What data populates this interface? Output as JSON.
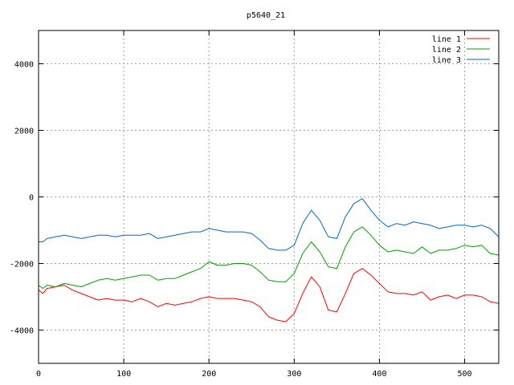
{
  "chart_data": {
    "type": "line",
    "title": "p5640_21",
    "xlabel": "",
    "ylabel": "",
    "xlim": [
      0,
      540
    ],
    "ylim": [
      -5000,
      5000
    ],
    "x_ticks": [
      0,
      100,
      200,
      300,
      400,
      500
    ],
    "y_ticks": [
      -4000,
      -2000,
      0,
      2000,
      4000
    ],
    "grid": true,
    "legend_position": "top-right",
    "series": [
      {
        "name": "line 1",
        "color": "#ff0000",
        "points": [
          [
            0,
            -2800
          ],
          [
            5,
            -2900
          ],
          [
            10,
            -2750
          ],
          [
            20,
            -2700
          ],
          [
            30,
            -2650
          ],
          [
            40,
            -2800
          ],
          [
            50,
            -2900
          ],
          [
            60,
            -3000
          ],
          [
            70,
            -3100
          ],
          [
            80,
            -3050
          ],
          [
            90,
            -3100
          ],
          [
            100,
            -3100
          ],
          [
            110,
            -3150
          ],
          [
            120,
            -3050
          ],
          [
            130,
            -3150
          ],
          [
            140,
            -3300
          ],
          [
            150,
            -3200
          ],
          [
            160,
            -3250
          ],
          [
            170,
            -3200
          ],
          [
            180,
            -3150
          ],
          [
            190,
            -3050
          ],
          [
            200,
            -3000
          ],
          [
            210,
            -3050
          ],
          [
            220,
            -3050
          ],
          [
            230,
            -3050
          ],
          [
            240,
            -3100
          ],
          [
            250,
            -3150
          ],
          [
            260,
            -3300
          ],
          [
            270,
            -3600
          ],
          [
            280,
            -3700
          ],
          [
            290,
            -3750
          ],
          [
            300,
            -3500
          ],
          [
            310,
            -2900
          ],
          [
            320,
            -2400
          ],
          [
            330,
            -2700
          ],
          [
            340,
            -3400
          ],
          [
            350,
            -3450
          ],
          [
            360,
            -2900
          ],
          [
            370,
            -2300
          ],
          [
            380,
            -2150
          ],
          [
            390,
            -2350
          ],
          [
            400,
            -2600
          ],
          [
            410,
            -2850
          ],
          [
            420,
            -2900
          ],
          [
            430,
            -2900
          ],
          [
            440,
            -2950
          ],
          [
            450,
            -2850
          ],
          [
            460,
            -3100
          ],
          [
            470,
            -3000
          ],
          [
            480,
            -2950
          ],
          [
            490,
            -3050
          ],
          [
            500,
            -2950
          ],
          [
            510,
            -2950
          ],
          [
            520,
            -3000
          ],
          [
            530,
            -3150
          ],
          [
            540,
            -3200
          ]
        ]
      },
      {
        "name": "line 2",
        "color": "#00a000",
        "points": [
          [
            0,
            -2650
          ],
          [
            5,
            -2750
          ],
          [
            10,
            -2650
          ],
          [
            20,
            -2700
          ],
          [
            30,
            -2600
          ],
          [
            40,
            -2650
          ],
          [
            50,
            -2700
          ],
          [
            60,
            -2600
          ],
          [
            70,
            -2500
          ],
          [
            80,
            -2450
          ],
          [
            90,
            -2500
          ],
          [
            100,
            -2450
          ],
          [
            110,
            -2400
          ],
          [
            120,
            -2350
          ],
          [
            130,
            -2350
          ],
          [
            140,
            -2500
          ],
          [
            150,
            -2450
          ],
          [
            160,
            -2450
          ],
          [
            170,
            -2350
          ],
          [
            180,
            -2250
          ],
          [
            190,
            -2150
          ],
          [
            200,
            -1950
          ],
          [
            210,
            -2050
          ],
          [
            220,
            -2050
          ],
          [
            230,
            -2000
          ],
          [
            240,
            -2000
          ],
          [
            250,
            -2050
          ],
          [
            260,
            -2250
          ],
          [
            270,
            -2500
          ],
          [
            280,
            -2550
          ],
          [
            290,
            -2550
          ],
          [
            300,
            -2300
          ],
          [
            310,
            -1700
          ],
          [
            320,
            -1350
          ],
          [
            330,
            -1650
          ],
          [
            340,
            -2100
          ],
          [
            350,
            -2150
          ],
          [
            360,
            -1500
          ],
          [
            370,
            -1050
          ],
          [
            380,
            -900
          ],
          [
            390,
            -1150
          ],
          [
            400,
            -1450
          ],
          [
            410,
            -1650
          ],
          [
            420,
            -1600
          ],
          [
            430,
            -1650
          ],
          [
            440,
            -1700
          ],
          [
            450,
            -1500
          ],
          [
            460,
            -1700
          ],
          [
            470,
            -1600
          ],
          [
            480,
            -1600
          ],
          [
            490,
            -1550
          ],
          [
            500,
            -1450
          ],
          [
            510,
            -1500
          ],
          [
            520,
            -1450
          ],
          [
            530,
            -1700
          ],
          [
            540,
            -1750
          ]
        ]
      },
      {
        "name": "line 3",
        "color": "#0066cc",
        "points": [
          [
            0,
            -1350
          ],
          [
            5,
            -1350
          ],
          [
            10,
            -1250
          ],
          [
            20,
            -1200
          ],
          [
            30,
            -1150
          ],
          [
            40,
            -1200
          ],
          [
            50,
            -1250
          ],
          [
            60,
            -1200
          ],
          [
            70,
            -1150
          ],
          [
            80,
            -1150
          ],
          [
            90,
            -1200
          ],
          [
            100,
            -1150
          ],
          [
            110,
            -1150
          ],
          [
            120,
            -1150
          ],
          [
            130,
            -1100
          ],
          [
            140,
            -1250
          ],
          [
            150,
            -1200
          ],
          [
            160,
            -1150
          ],
          [
            170,
            -1100
          ],
          [
            180,
            -1050
          ],
          [
            190,
            -1050
          ],
          [
            200,
            -950
          ],
          [
            210,
            -1000
          ],
          [
            220,
            -1050
          ],
          [
            230,
            -1050
          ],
          [
            240,
            -1050
          ],
          [
            250,
            -1100
          ],
          [
            260,
            -1300
          ],
          [
            270,
            -1550
          ],
          [
            280,
            -1600
          ],
          [
            290,
            -1600
          ],
          [
            300,
            -1450
          ],
          [
            310,
            -800
          ],
          [
            320,
            -400
          ],
          [
            330,
            -700
          ],
          [
            340,
            -1200
          ],
          [
            350,
            -1250
          ],
          [
            360,
            -600
          ],
          [
            370,
            -200
          ],
          [
            380,
            -50
          ],
          [
            390,
            -400
          ],
          [
            400,
            -700
          ],
          [
            410,
            -900
          ],
          [
            420,
            -800
          ],
          [
            430,
            -850
          ],
          [
            440,
            -750
          ],
          [
            450,
            -800
          ],
          [
            460,
            -850
          ],
          [
            470,
            -950
          ],
          [
            480,
            -900
          ],
          [
            490,
            -850
          ],
          [
            500,
            -850
          ],
          [
            510,
            -900
          ],
          [
            520,
            -850
          ],
          [
            530,
            -950
          ],
          [
            540,
            -1200
          ]
        ]
      }
    ]
  }
}
